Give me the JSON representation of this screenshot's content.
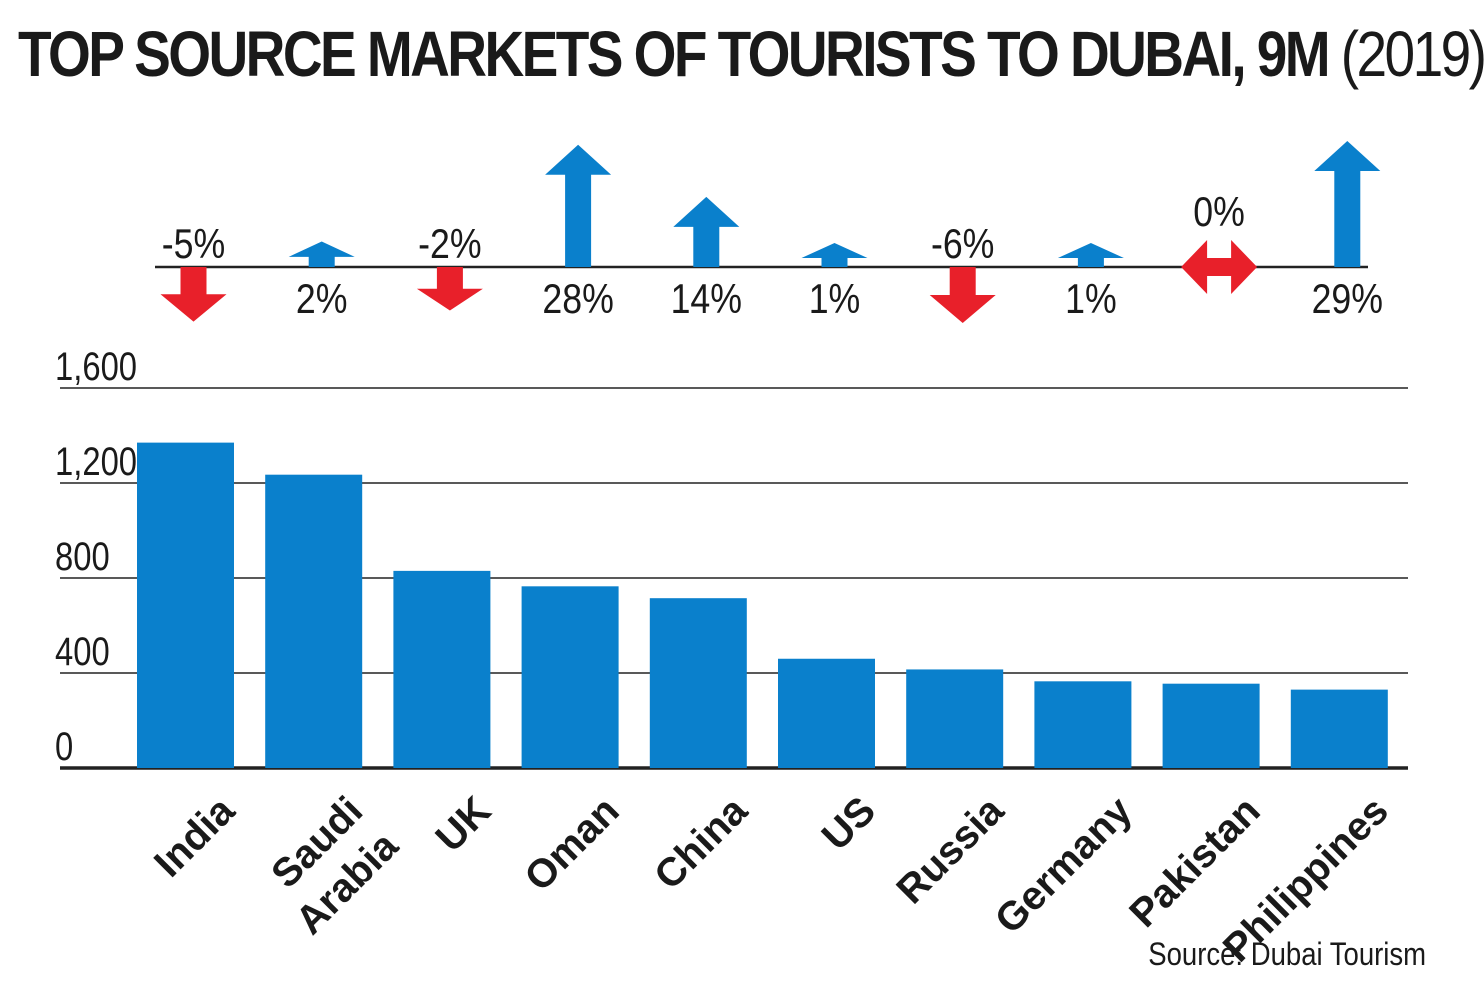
{
  "title": {
    "main": "TOP SOURCE MARKETS OF TOURISTS TO DUBAI, 9M",
    "year": "(2019)"
  },
  "source": "Source: Dubai Tourism",
  "colors": {
    "bar": "#0a80cc",
    "up_arrow": "#0a80cc",
    "down_arrow": "#e8202a",
    "flat_arrow": "#e8202a",
    "text": "#1a1a1a"
  },
  "chart_data": {
    "type": "bar",
    "title": "TOP SOURCE MARKETS OF TOURISTS TO DUBAI, 9M (2019)",
    "xlabel": "",
    "ylabel": "",
    "categories": [
      "India",
      "Saudi Arabia",
      "UK",
      "Oman",
      "China",
      "US",
      "Russia",
      "Germany",
      "Pakistan",
      "Philippines"
    ],
    "category_lines": [
      [
        "India"
      ],
      [
        "Saudi",
        "Arabia"
      ],
      [
        "UK"
      ],
      [
        "Oman"
      ],
      [
        "China"
      ],
      [
        "US"
      ],
      [
        "Russia"
      ],
      [
        "Germany"
      ],
      [
        "Pakistan"
      ],
      [
        "Philippines"
      ]
    ],
    "values": [
      1370,
      1235,
      830,
      765,
      715,
      460,
      415,
      365,
      355,
      330
    ],
    "ylim": [
      0,
      1600
    ],
    "yticks": [
      0,
      400,
      800,
      1200,
      1600
    ],
    "ytick_labels": [
      "0",
      "400",
      "800",
      "1,200",
      "1,600"
    ],
    "grid": true,
    "changes": [
      {
        "label": "-5%",
        "value": -5,
        "direction": "down"
      },
      {
        "label": "2%",
        "value": 2,
        "direction": "up"
      },
      {
        "label": "-2%",
        "value": -2,
        "direction": "down"
      },
      {
        "label": "28%",
        "value": 28,
        "direction": "up"
      },
      {
        "label": "14%",
        "value": 14,
        "direction": "up"
      },
      {
        "label": "1%",
        "value": 1,
        "direction": "up"
      },
      {
        "label": "-6%",
        "value": -6,
        "direction": "down"
      },
      {
        "label": "1%",
        "value": 1,
        "direction": "up"
      },
      {
        "label": "0%",
        "value": 0,
        "direction": "flat"
      },
      {
        "label": "29%",
        "value": 29,
        "direction": "up"
      }
    ]
  }
}
